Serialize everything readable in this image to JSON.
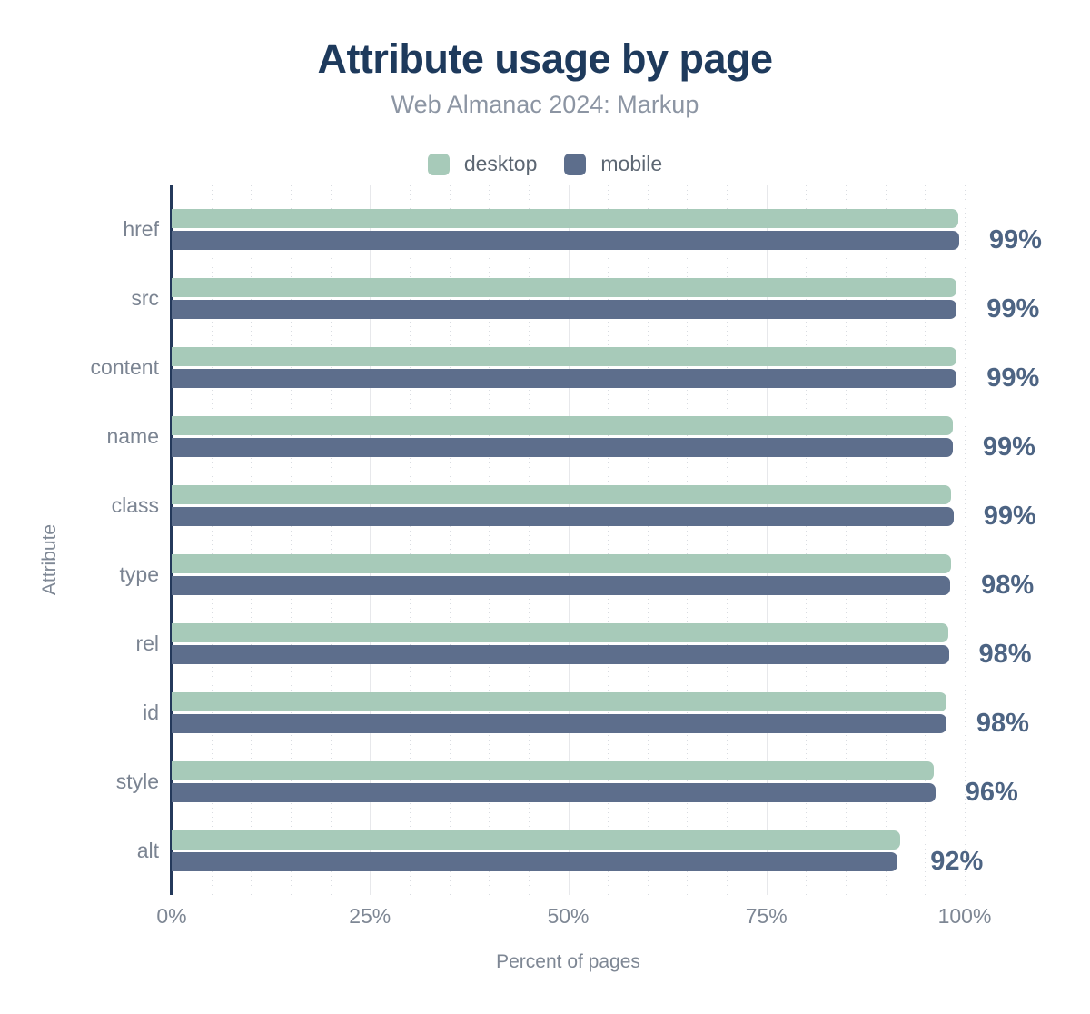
{
  "chart": {
    "title": "Attribute usage by page",
    "subtitle": "Web Almanac 2024: Markup",
    "xlabel": "Percent of pages",
    "ylabel": "Attribute"
  },
  "chart_data": {
    "type": "bar",
    "orientation": "horizontal",
    "title": "Attribute usage by page",
    "subtitle": "Web Almanac 2024: Markup",
    "categories": [
      "href",
      "src",
      "content",
      "name",
      "class",
      "type",
      "rel",
      "id",
      "style",
      "alt"
    ],
    "series": [
      {
        "name": "desktop",
        "color": "#a7cab9",
        "values": [
          99.2,
          99.0,
          99.0,
          98.5,
          98.3,
          98.3,
          97.9,
          97.7,
          96.1,
          91.9
        ]
      },
      {
        "name": "mobile",
        "color": "#5d6e8c",
        "values": [
          99.3,
          99.0,
          99.0,
          98.5,
          98.6,
          98.2,
          98.0,
          97.7,
          96.3,
          91.5
        ]
      }
    ],
    "value_labels": [
      "99%",
      "99%",
      "99%",
      "99%",
      "99%",
      "98%",
      "98%",
      "98%",
      "96%",
      "92%"
    ],
    "xlabel": "Percent of pages",
    "ylabel": "Attribute",
    "x_ticks": [
      "0%",
      "25%",
      "50%",
      "75%",
      "100%"
    ],
    "xlim": [
      0,
      100
    ],
    "grid": {
      "minor_step": 5,
      "major_step": 25,
      "minor_style": "dotted",
      "major_style": "solid"
    },
    "legend_position": "top"
  }
}
